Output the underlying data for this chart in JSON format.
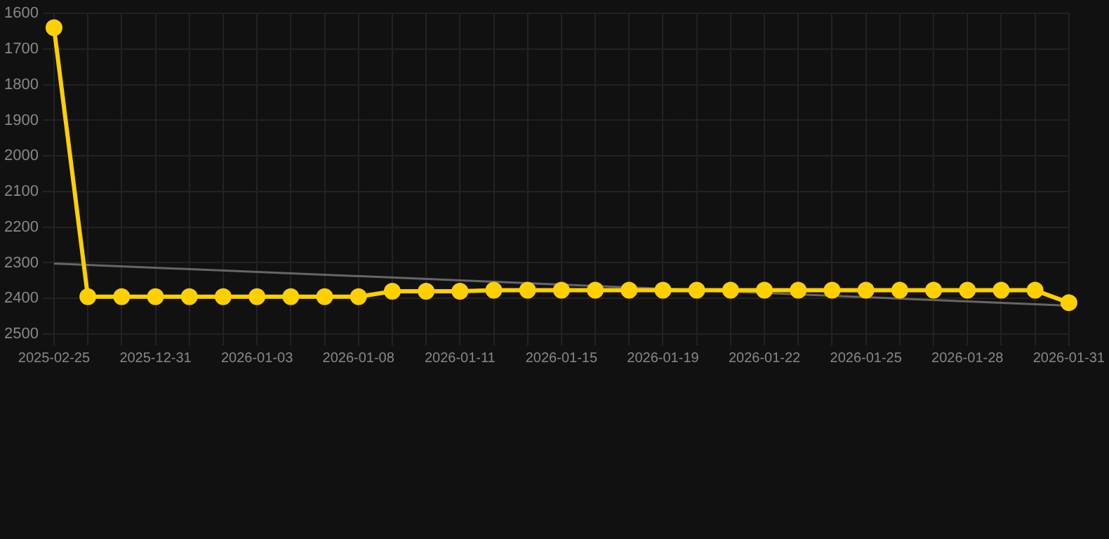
{
  "chart_data": {
    "type": "line",
    "categories": [
      "2025-02-25",
      null,
      null,
      "2025-12-31",
      null,
      null,
      "2026-01-03",
      null,
      null,
      "2026-01-08",
      null,
      null,
      "2026-01-11",
      null,
      null,
      "2026-01-15",
      null,
      null,
      "2026-01-19",
      null,
      null,
      "2026-01-22",
      null,
      null,
      "2026-01-25",
      null,
      null,
      "2026-01-28",
      null,
      null,
      "2026-01-31"
    ],
    "series": [
      {
        "color": "#ffd000",
        "marker": "circle",
        "values": [
          1640,
          2395,
          2395,
          2395,
          2395,
          2395,
          2395,
          2395,
          2395,
          2395,
          2380,
          2380,
          2380,
          2377,
          2377,
          2377,
          2377,
          2377,
          2377,
          2377,
          2377,
          2377,
          2377,
          2377,
          2377,
          2377,
          2377,
          2377,
          2377,
          2377,
          2412
        ]
      },
      {
        "color": "#666666",
        "marker": "none",
        "values": [
          2302,
          null,
          null,
          null,
          null,
          null,
          null,
          null,
          null,
          null,
          null,
          null,
          null,
          null,
          null,
          null,
          null,
          null,
          null,
          null,
          null,
          null,
          null,
          null,
          null,
          null,
          null,
          null,
          null,
          null,
          2420
        ]
      }
    ],
    "ylim": [
      2500,
      1600
    ],
    "yticks": [
      1600,
      1700,
      1800,
      1900,
      2000,
      2100,
      2200,
      2300,
      2400,
      2500
    ],
    "grid": true,
    "legend": false
  }
}
